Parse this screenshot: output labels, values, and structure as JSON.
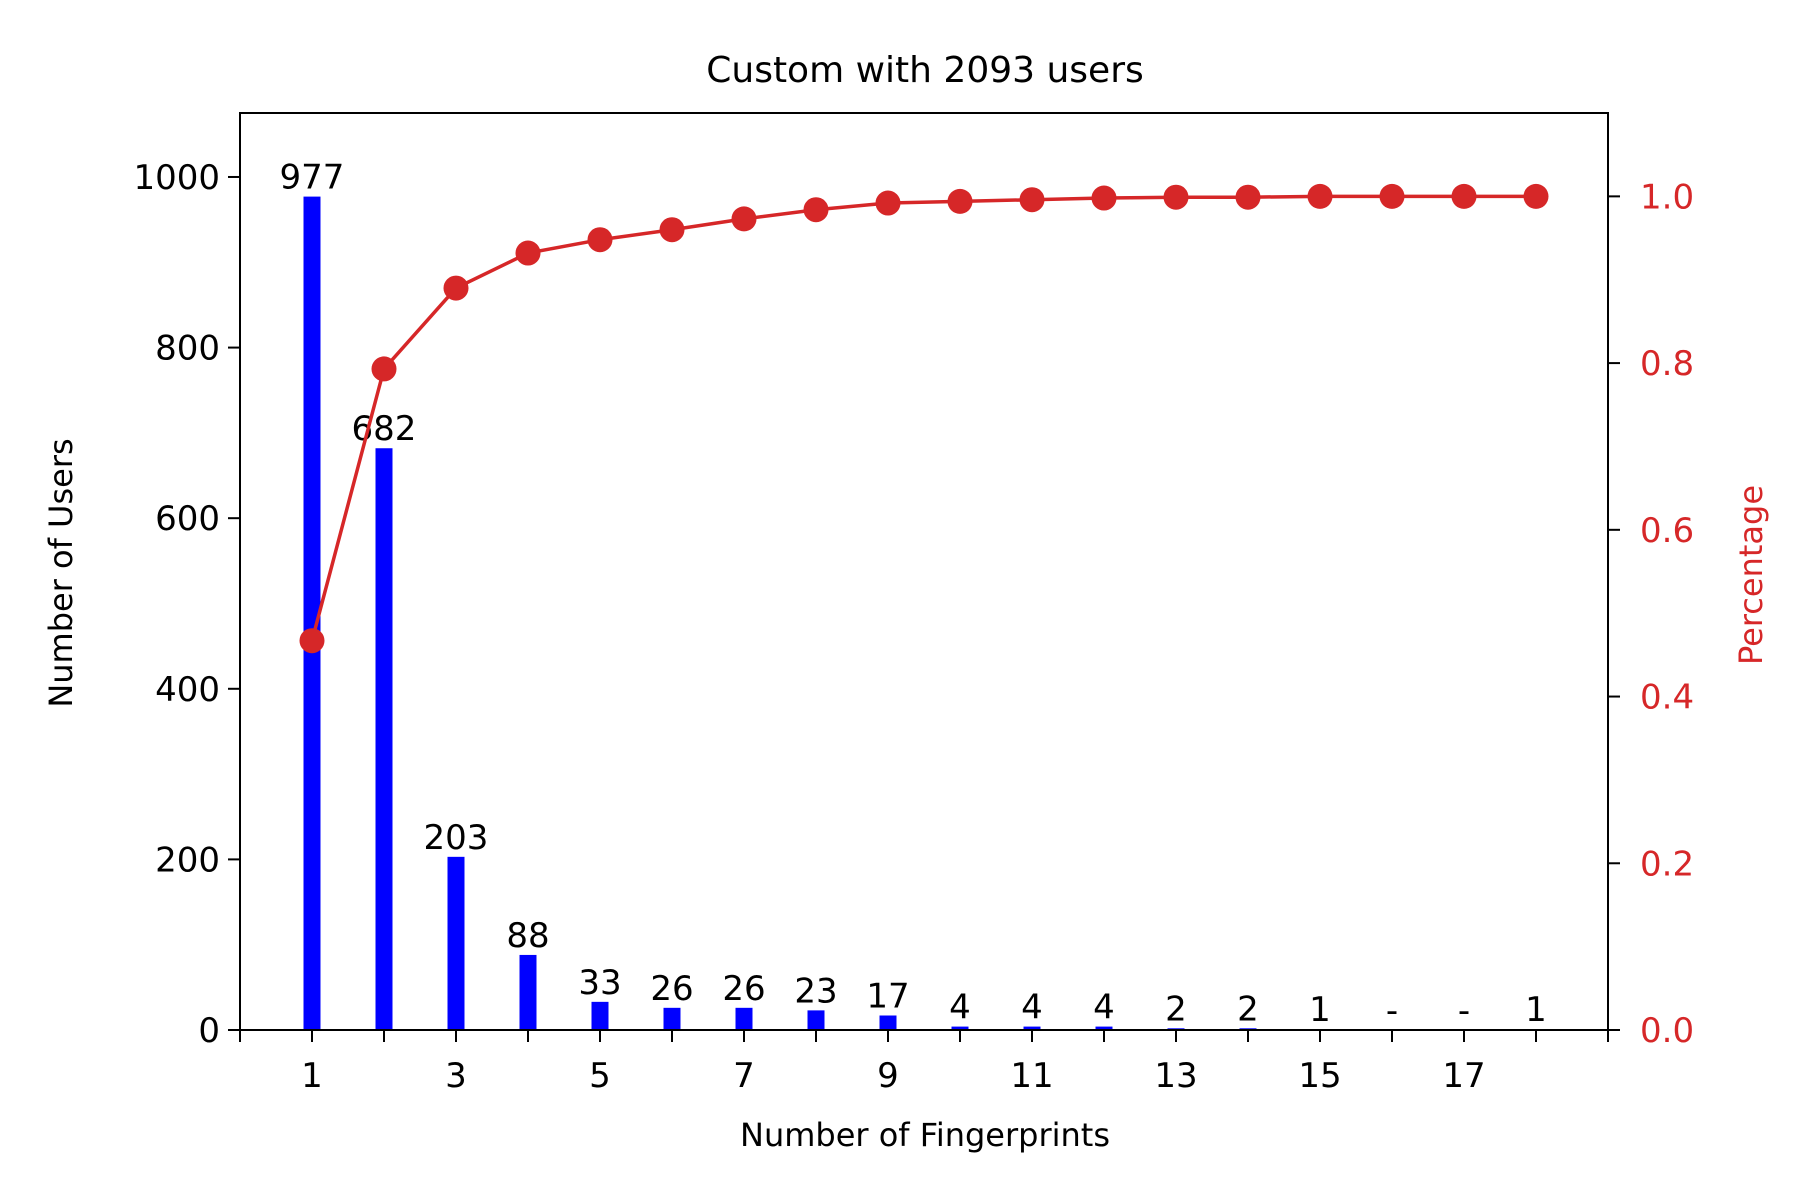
{
  "chart_data": {
    "type": "bar+line",
    "title": "Custom with 2093 users",
    "xlabel": "Number of Fingerprints",
    "ylabel": "Number of Users",
    "y2label": "Percentage",
    "xlim": [
      0,
      19
    ],
    "ylim": [
      0,
      1075
    ],
    "y2lim": [
      0,
      1.1
    ],
    "x_ticks_major": [
      "1",
      "3",
      "5",
      "7",
      "9",
      "11",
      "13",
      "15",
      "17"
    ],
    "y_ticks": [
      "0",
      "200",
      "400",
      "600",
      "800",
      "1000"
    ],
    "y2_ticks": [
      "0.0",
      "0.2",
      "0.4",
      "0.6",
      "0.8",
      "1.0"
    ],
    "x": [
      1,
      2,
      3,
      4,
      5,
      6,
      7,
      8,
      9,
      10,
      11,
      12,
      13,
      14,
      15,
      16,
      17,
      18
    ],
    "bars": {
      "color": "#0000ff",
      "values": [
        977,
        682,
        203,
        88,
        33,
        26,
        26,
        23,
        17,
        4,
        4,
        4,
        2,
        2,
        1,
        0,
        0,
        1
      ],
      "labels": [
        "977",
        "682",
        "203",
        "88",
        "33",
        "26",
        "26",
        "23",
        "17",
        "4",
        "4",
        "4",
        "2",
        "2",
        "1",
        "-",
        "-",
        "1"
      ]
    },
    "line": {
      "color": "#d62728",
      "values": [
        0.467,
        0.793,
        0.89,
        0.932,
        0.948,
        0.96,
        0.973,
        0.984,
        0.992,
        0.994,
        0.996,
        0.998,
        0.999,
        0.999,
        1.0,
        1.0,
        1.0,
        1.0
      ]
    },
    "grid": false,
    "legend": "none"
  }
}
